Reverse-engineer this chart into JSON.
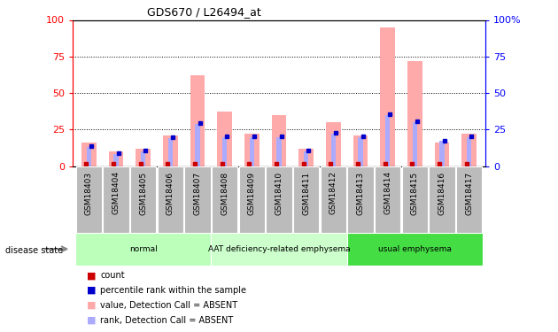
{
  "title": "GDS670 / L26494_at",
  "samples": [
    "GSM18403",
    "GSM18404",
    "GSM18405",
    "GSM18406",
    "GSM18407",
    "GSM18408",
    "GSM18409",
    "GSM18410",
    "GSM18411",
    "GSM18412",
    "GSM18413",
    "GSM18414",
    "GSM18415",
    "GSM18416",
    "GSM18417"
  ],
  "value_absent": [
    16,
    10,
    12,
    21,
    62,
    37,
    22,
    35,
    12,
    30,
    21,
    95,
    72,
    16,
    22
  ],
  "rank_absent": [
    13,
    8,
    10,
    19,
    29,
    20,
    20,
    20,
    10,
    22,
    20,
    35,
    30,
    17,
    20
  ],
  "groups": [
    {
      "label": "normal",
      "start": 0,
      "end": 5,
      "color": "#bbffbb"
    },
    {
      "label": "AAT deficiency-related emphysema",
      "start": 5,
      "end": 10,
      "color": "#ccffcc"
    },
    {
      "label": "usual emphysema",
      "start": 10,
      "end": 15,
      "color": "#44dd44"
    }
  ],
  "color_value_absent": "#ffaaaa",
  "color_rank_absent": "#aaaaff",
  "color_count": "#cc0000",
  "color_rank": "#0000cc",
  "ylim": [
    0,
    100
  ],
  "yticks": [
    0,
    25,
    50,
    75,
    100
  ],
  "background_xtick": "#bbbbbb",
  "legend_items": [
    {
      "label": "count",
      "color": "#cc0000"
    },
    {
      "label": "percentile rank within the sample",
      "color": "#0000cc"
    },
    {
      "label": "value, Detection Call = ABSENT",
      "color": "#ffaaaa"
    },
    {
      "label": "rank, Detection Call = ABSENT",
      "color": "#aaaaff"
    }
  ],
  "disease_state_label": "disease state"
}
